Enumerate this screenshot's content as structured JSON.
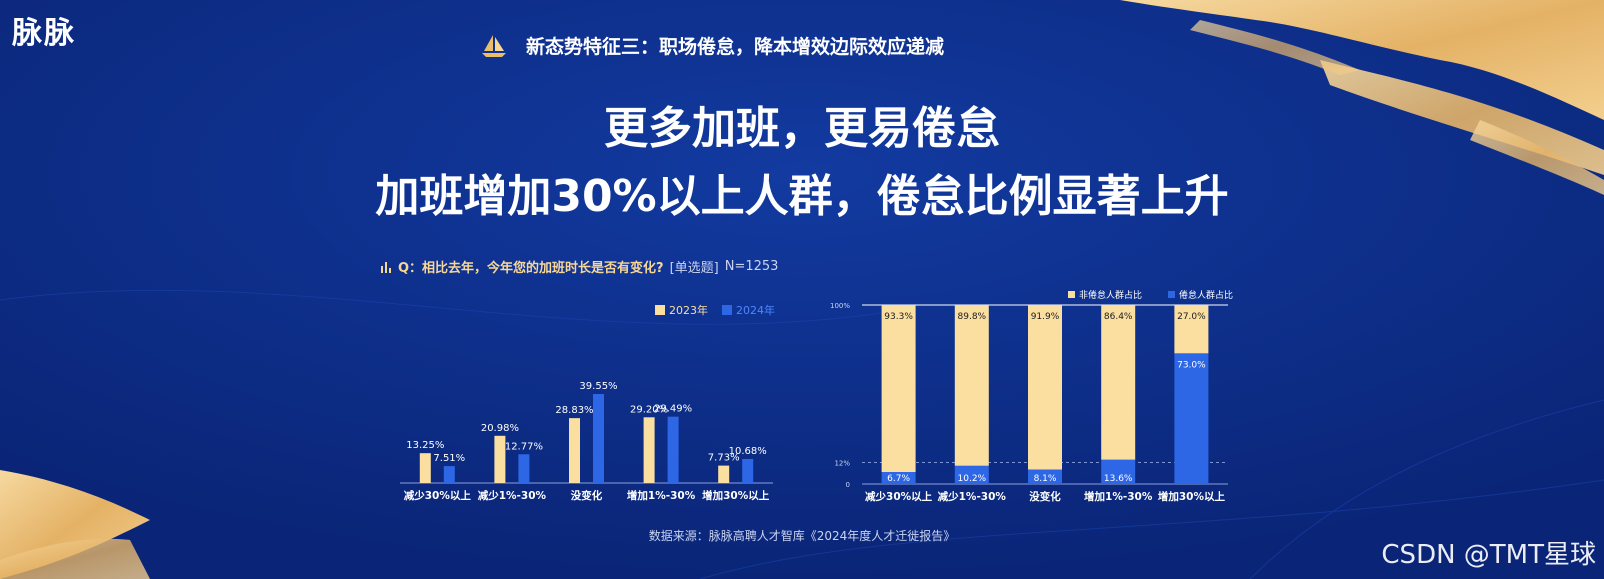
{
  "brand": {
    "logo": "脉脉"
  },
  "section_title": "新态势特征三：职场倦怠，降本增效边际效应递减",
  "headline": {
    "line1": "更多加班，更易倦怠",
    "line2": "加班增加30%以上人群，倦怠比例显著上升"
  },
  "question": {
    "text": "Q：相比去年，今年您的加班时长是否有变化?",
    "tag": "[单选题]",
    "n": "N=1253"
  },
  "source": "数据来源：脉脉高聘人才智库《2024年度人才迁徙报告》",
  "watermark": "CSDN @TMT星球",
  "colors": {
    "bg": "#0c2b84",
    "cream": "#fbdfa0",
    "blue": "#2e67e6",
    "gold": "#e9bd6a"
  },
  "icons": {
    "boat": "sailboat-icon",
    "chart": "bar-chart-icon"
  },
  "chart_data": [
    {
      "type": "bar",
      "title": "",
      "categories": [
        "减少30%以上",
        "减少1%-30%",
        "没变化",
        "增加1%-30%",
        "增加30%以上"
      ],
      "series": [
        {
          "name": "2023年",
          "values": [
            13.25,
            20.98,
            28.83,
            29.2,
            7.73
          ],
          "labels": [
            "13.25%",
            "20.98%",
            "28.83%",
            "29.20%",
            "7.73%"
          ],
          "color": "#fbdfa0"
        },
        {
          "name": "2024年",
          "values": [
            7.51,
            12.77,
            39.55,
            29.49,
            10.68
          ],
          "labels": [
            "7.51%",
            "12.77%",
            "39.55%",
            "29.49%",
            "10.68%"
          ],
          "color": "#2e67e6"
        }
      ],
      "ylim": [
        0,
        40
      ],
      "legend": "top-right"
    },
    {
      "type": "bar",
      "stacked": true,
      "percent": true,
      "categories": [
        "减少30%以上",
        "减少1%-30%",
        "没变化",
        "增加1%-30%",
        "增加30%以上"
      ],
      "series": [
        {
          "name": "非倦怠人群占比",
          "values": [
            93.3,
            89.8,
            91.9,
            86.4,
            27.0
          ],
          "labels": [
            "93.3%",
            "89.8%",
            "91.9%",
            "86.4%",
            "27.0%"
          ],
          "color": "#fbdfa0"
        },
        {
          "name": "倦怠人群占比",
          "values": [
            6.7,
            10.2,
            8.1,
            13.6,
            73.0
          ],
          "labels": [
            "6.7%",
            "10.2%",
            "8.1%",
            "13.6%",
            "73.0%"
          ],
          "color": "#2e67e6"
        }
      ],
      "yticks": [
        "0",
        "12%",
        "100%"
      ],
      "reference_line": 12,
      "ylim": [
        0,
        100
      ],
      "legend": "top-right"
    }
  ]
}
